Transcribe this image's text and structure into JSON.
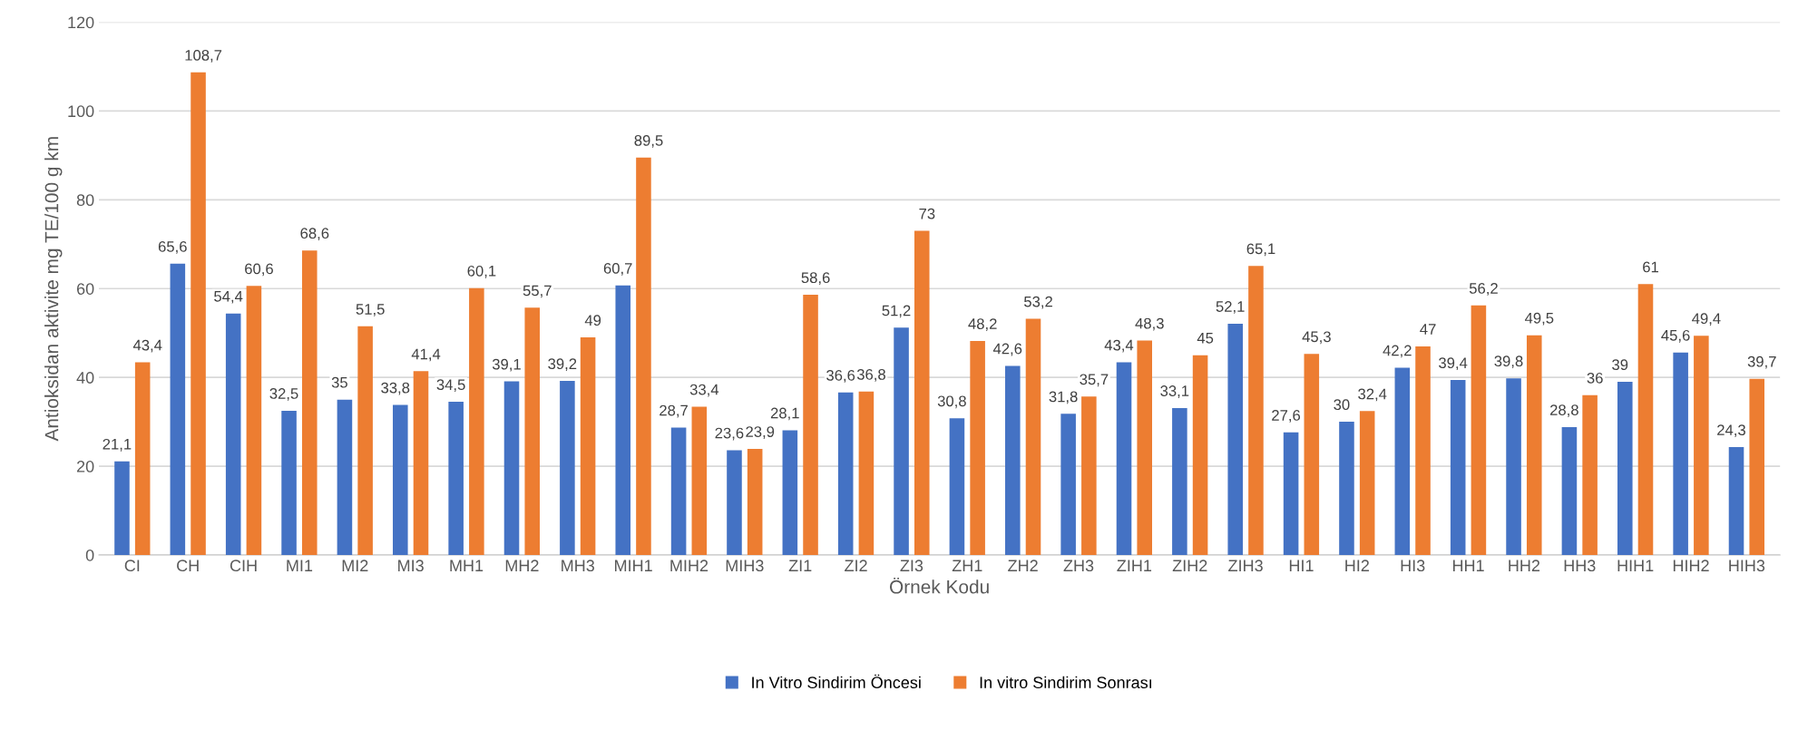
{
  "chart_data": {
    "type": "bar",
    "xlabel": "Örnek Kodu",
    "ylabel": "Antioksidan aktivite mg TE/100 g km",
    "categories": [
      "CI",
      "CH",
      "CIH",
      "MI1",
      "MI2",
      "MI3",
      "MH1",
      "MH2",
      "MH3",
      "MIH1",
      "MIH2",
      "MIH3",
      "ZI1",
      "ZI2",
      "ZI3",
      "ZH1",
      "ZH2",
      "ZH3",
      "ZIH1",
      "ZIH2",
      "ZIH3",
      "HI1",
      "HI2",
      "HI3",
      "HH1",
      "HH2",
      "HH3",
      "HIH1",
      "HIH2",
      "HIH3"
    ],
    "series": [
      {
        "name": "In Vitro Sindirim Öncesi",
        "color": "#4472c4",
        "values": [
          21.1,
          65.6,
          54.4,
          32.5,
          35,
          33.8,
          34.5,
          39.1,
          39.2,
          60.7,
          28.7,
          23.6,
          28.1,
          36.6,
          51.2,
          30.8,
          42.6,
          31.8,
          43.4,
          33.1,
          52.1,
          27.6,
          30,
          42.2,
          39.4,
          39.8,
          28.8,
          39,
          45.6,
          24.3
        ],
        "value_labels": [
          "21,1",
          "65,6",
          "54,4",
          "32,5",
          "35",
          "33,8",
          "34,5",
          "39,1",
          "39,2",
          "60,7",
          "28,7",
          "23,6",
          "28,1",
          "36,6",
          "51,2",
          "30,8",
          "42,6",
          "31,8",
          "43,4",
          "33,1",
          "52,1",
          "27,6",
          "30",
          "42,2",
          "39,4",
          "39,8",
          "28,8",
          "39",
          "45,6",
          "24,3"
        ]
      },
      {
        "name": "In vitro Sindirim Sonrası",
        "color": "#ed7d31",
        "values": [
          43.4,
          108.7,
          60.6,
          68.6,
          51.5,
          41.4,
          60.1,
          55.7,
          49,
          89.5,
          33.4,
          23.9,
          58.6,
          36.8,
          73,
          48.2,
          53.2,
          35.7,
          48.3,
          45,
          65.1,
          45.3,
          32.4,
          47,
          56.2,
          49.5,
          36,
          61,
          49.4,
          39.7
        ],
        "value_labels": [
          "43,4",
          "108,7",
          "60,6",
          "68,6",
          "51,5",
          "41,4",
          "60,1",
          "55,7",
          "49",
          "89,5",
          "33,4",
          "23,9",
          "58,6",
          "36,8",
          "73",
          "48,2",
          "53,2",
          "35,7",
          "48,3",
          "45",
          "65,1",
          "45,3",
          "32,4",
          "47",
          "56,2",
          "49,5",
          "36",
          "61",
          "49,4",
          "39,7"
        ]
      }
    ],
    "ylim": [
      0,
      120
    ],
    "yticks": [
      0,
      20,
      40,
      60,
      80,
      100,
      120
    ],
    "grid": "y",
    "legend": "bottom"
  }
}
